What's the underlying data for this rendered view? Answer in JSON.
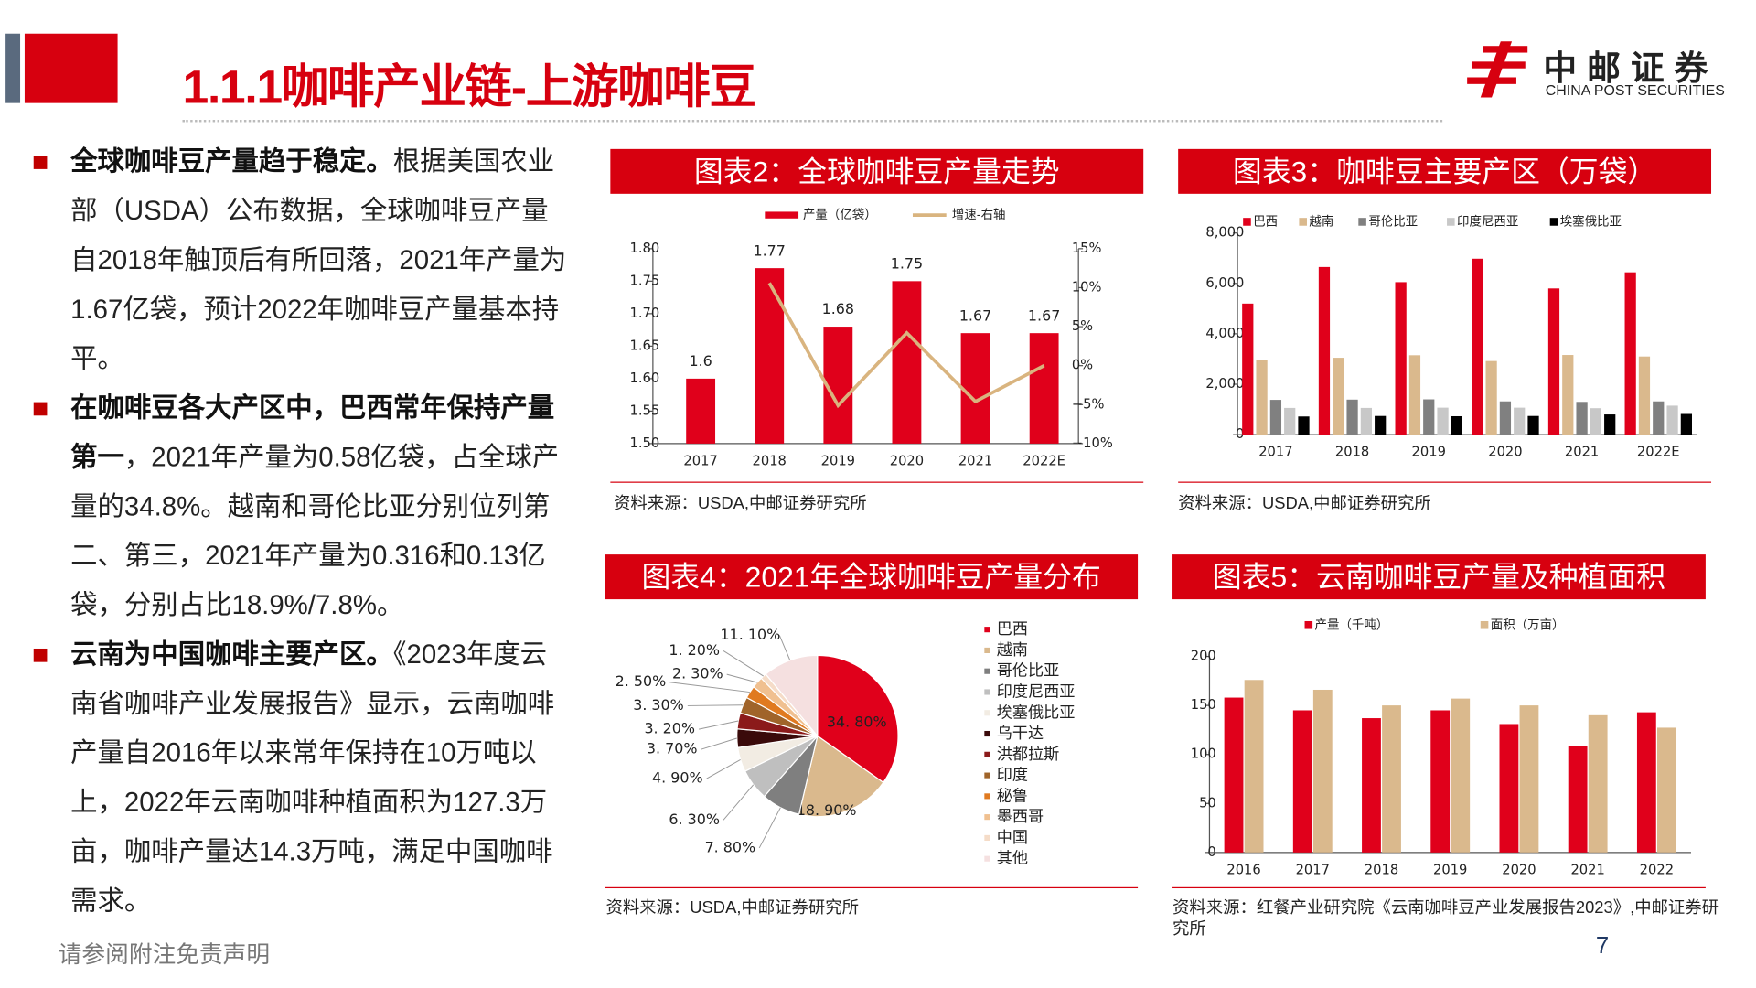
{
  "header": {
    "title": "1.1.1咖啡产业链-上游咖啡豆",
    "logo_cn": "中邮证券",
    "logo_en": "CHINA POST SECURITIES"
  },
  "bullets": [
    {
      "bold": "全球咖啡豆产量趋于稳定。",
      "text": "根据美国农业部（USDA）公布数据，全球咖啡豆产量自2018年触顶后有所回落，2021年产量为1.67亿袋，预计2022年咖啡豆产量基本持平。"
    },
    {
      "bold": "在咖啡豆各大产区中，巴西常年保持产量第一",
      "text": "，2021年产量为0.58亿袋，占全球产量的34.8%。越南和哥伦比亚分别位列第二、第三，2021年产量为0.316和0.13亿袋，分别占比18.9%/7.8%。"
    },
    {
      "bold": "云南为中国咖啡主要产区。",
      "text": "《2023年度云南省咖啡产业发展报告》显示，云南咖啡产量自2016年以来常年保持在10万吨以上，2022年云南咖啡种植面积为127.3万亩，咖啡产量达14.3万吨，满足中国咖啡需求。"
    }
  ],
  "footer": {
    "disclaimer": "请参阅附注免责声明",
    "page": "7"
  },
  "chart_data": [
    {
      "type": "bar_line",
      "title": "图表2：全球咖啡豆产量走势",
      "categories": [
        "2017",
        "2018",
        "2019",
        "2020",
        "2021",
        "2022E"
      ],
      "series": [
        {
          "name": "产量（亿袋）",
          "color": "#e0001b",
          "values": [
            1.6,
            1.77,
            1.68,
            1.75,
            1.67,
            1.67
          ]
        },
        {
          "name": "增速-右轴",
          "color": "#d9b47f",
          "axis": "y2",
          "values": [
            null,
            10.6,
            -5.1,
            4.2,
            -4.6,
            0
          ]
        }
      ],
      "ylim": [
        1.5,
        1.8
      ],
      "yticks": [
        {
          "value": 1.5,
          "label": "1.50"
        },
        {
          "value": 1.55,
          "label": "1.55"
        },
        {
          "value": 1.6,
          "label": "1.60"
        },
        {
          "value": 1.65,
          "label": "1.65"
        },
        {
          "value": 1.7,
          "label": "1.70"
        },
        {
          "value": 1.75,
          "label": "1.75"
        },
        {
          "value": 1.8,
          "label": "1.80"
        }
      ],
      "y2lim": [
        -10,
        15
      ],
      "y2ticks": [
        {
          "value": -10,
          "label": "−10%"
        },
        {
          "value": -5,
          "label": "−5%"
        },
        {
          "value": 0,
          "label": "0%"
        },
        {
          "value": 5,
          "label": "5%"
        },
        {
          "value": 10,
          "label": "10%"
        },
        {
          "value": 15,
          "label": "15%"
        }
      ],
      "source": "资料来源：USDA,中邮证券研究所"
    },
    {
      "type": "bar",
      "title": "图表3：咖啡豆主要产区（万袋）",
      "categories": [
        "2017",
        "2018",
        "2019",
        "2020",
        "2021",
        "2022E"
      ],
      "series": [
        {
          "name": "巴西",
          "color": "#e0001b",
          "values": [
            5200,
            6650,
            6050,
            6980,
            5800,
            6440
          ]
        },
        {
          "name": "越南",
          "color": "#dab98d",
          "values": [
            2950,
            3050,
            3150,
            2920,
            3160,
            3100
          ]
        },
        {
          "name": "哥伦比亚",
          "color": "#808080",
          "values": [
            1380,
            1390,
            1400,
            1320,
            1300,
            1320
          ]
        },
        {
          "name": "印度尼西亚",
          "color": "#c8c8c8",
          "values": [
            1060,
            1060,
            1070,
            1070,
            1050,
            1150
          ]
        },
        {
          "name": "埃塞俄比亚",
          "color": "#000000",
          "values": [
            720,
            740,
            730,
            740,
            800,
            820
          ]
        }
      ],
      "ylim": [
        0,
        8000
      ],
      "yticks": [
        0,
        {
          "value": 2000,
          "label": "2,000"
        },
        {
          "value": 4000,
          "label": "4,000"
        },
        {
          "value": 6000,
          "label": "6,000"
        },
        {
          "value": 8000,
          "label": "8,000"
        }
      ],
      "source": "资料来源：USDA,中邮证券研究所"
    },
    {
      "type": "pie",
      "title": "图表4：2021年全球咖啡豆产量分布",
      "categories": [
        "巴西",
        "越南",
        "哥伦比亚",
        "印度尼西亚",
        "埃塞俄比亚",
        "乌干达",
        "洪都拉斯",
        "印度",
        "秘鲁",
        "墨西哥",
        "中国",
        "其他"
      ],
      "values": [
        34.8,
        18.9,
        7.8,
        6.3,
        4.9,
        3.7,
        3.2,
        3.3,
        2.5,
        2.3,
        1.2,
        11.1
      ],
      "value_labels": [
        "34. 80%",
        "18. 90%",
        "7. 80%",
        "6. 30%",
        "4. 90%",
        "3. 70%",
        "3. 20%",
        "3. 30%",
        "2. 50%",
        "2. 30%",
        "1. 20%",
        "11. 10%"
      ],
      "colors": [
        "#e0001b",
        "#dab98d",
        "#7f7f7f",
        "#bfbfbf",
        "#f2ece3",
        "#3a0a0a",
        "#8b1a1a",
        "#a0642a",
        "#e07a20",
        "#f0c090",
        "#f5dcc8",
        "#f5e0e0"
      ],
      "source": "资料来源：USDA,中邮证券研究所"
    },
    {
      "type": "bar",
      "title": "图表5：云南咖啡豆产量及种植面积",
      "categories": [
        "2016",
        "2017",
        "2018",
        "2019",
        "2020",
        "2021",
        "2022"
      ],
      "series": [
        {
          "name": "产量（千吨）",
          "color": "#e0001b",
          "values": [
            158,
            145,
            137,
            145,
            131,
            109,
            143
          ]
        },
        {
          "name": "面积（万亩）",
          "color": "#dab98d",
          "values": [
            176,
            166,
            150,
            157,
            150,
            140,
            127.3
          ]
        }
      ],
      "ylim": [
        0,
        200
      ],
      "yticks": [
        0,
        50,
        100,
        150,
        200
      ],
      "source": "资料来源：红餐产业研究院《云南咖啡豆产业发展报告2023》,中邮证券研究所"
    }
  ]
}
